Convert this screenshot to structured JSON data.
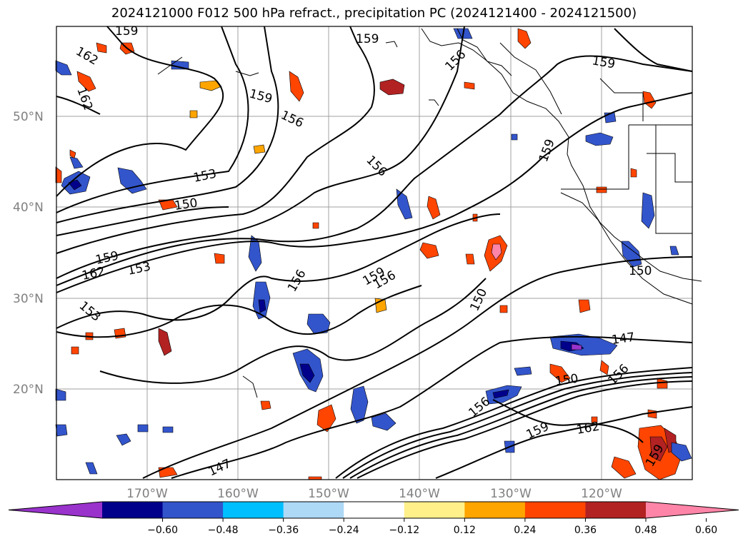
{
  "title": "2024121000 F012 500 hPa refract., precipitation PC (2024121400 - 2024121500)",
  "lat_ticks": [
    "50°N",
    "40°N",
    "30°N",
    "20°N"
  ],
  "lon_ticks": [
    "170°W",
    "160°W",
    "150°W",
    "140°W",
    "130°W",
    "120°W"
  ],
  "contour_labels": [
    "159",
    "156",
    "153",
    "150",
    "147",
    "162"
  ],
  "colorbar": {
    "colors": [
      "#9933cc",
      "#00008b",
      "#3355cc",
      "#00bfff",
      "#add8f6",
      "#ffffff",
      "#fff08a",
      "#ffa500",
      "#ff4500",
      "#b22222",
      "#ff85a8"
    ],
    "ticks": [
      "−0.60",
      "−0.48",
      "−0.36",
      "−0.24",
      "−0.12",
      "0.12",
      "0.24",
      "0.36",
      "0.48",
      "0.60"
    ]
  }
}
